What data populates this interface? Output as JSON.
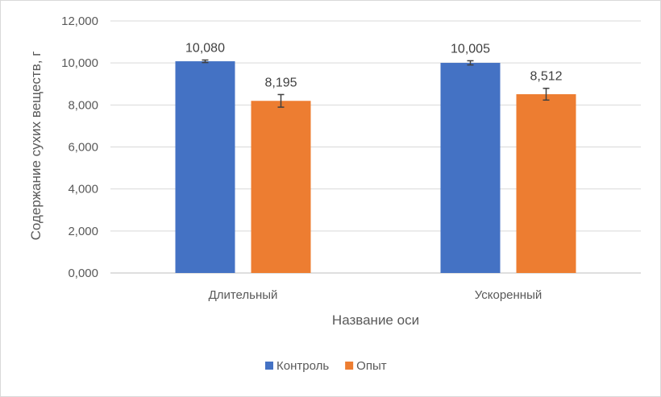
{
  "chart_data": {
    "type": "bar",
    "categories": [
      "Длительный",
      "Ускоренный"
    ],
    "series": [
      {
        "name": "Контроль",
        "values": [
          10.08,
          10.005
        ],
        "labels": [
          "10,080",
          "10,005"
        ],
        "errors": [
          0.06,
          0.1
        ],
        "color": "#4472c4"
      },
      {
        "name": "Опыт",
        "values": [
          8.195,
          8.512
        ],
        "labels": [
          "8,195",
          "8,512"
        ],
        "errors": [
          0.3,
          0.28
        ],
        "color": "#ed7d31"
      }
    ],
    "xlabel": "Название оси",
    "ylabel": "Содержание сухих веществ, г",
    "ylim": [
      0,
      12
    ],
    "yticks": [
      0,
      2,
      4,
      6,
      8,
      10,
      12
    ],
    "ytick_labels": [
      "0,000",
      "2,000",
      "4,000",
      "6,000",
      "8,000",
      "10,000",
      "12,000"
    ],
    "grid": true,
    "legend_position": "bottom"
  }
}
